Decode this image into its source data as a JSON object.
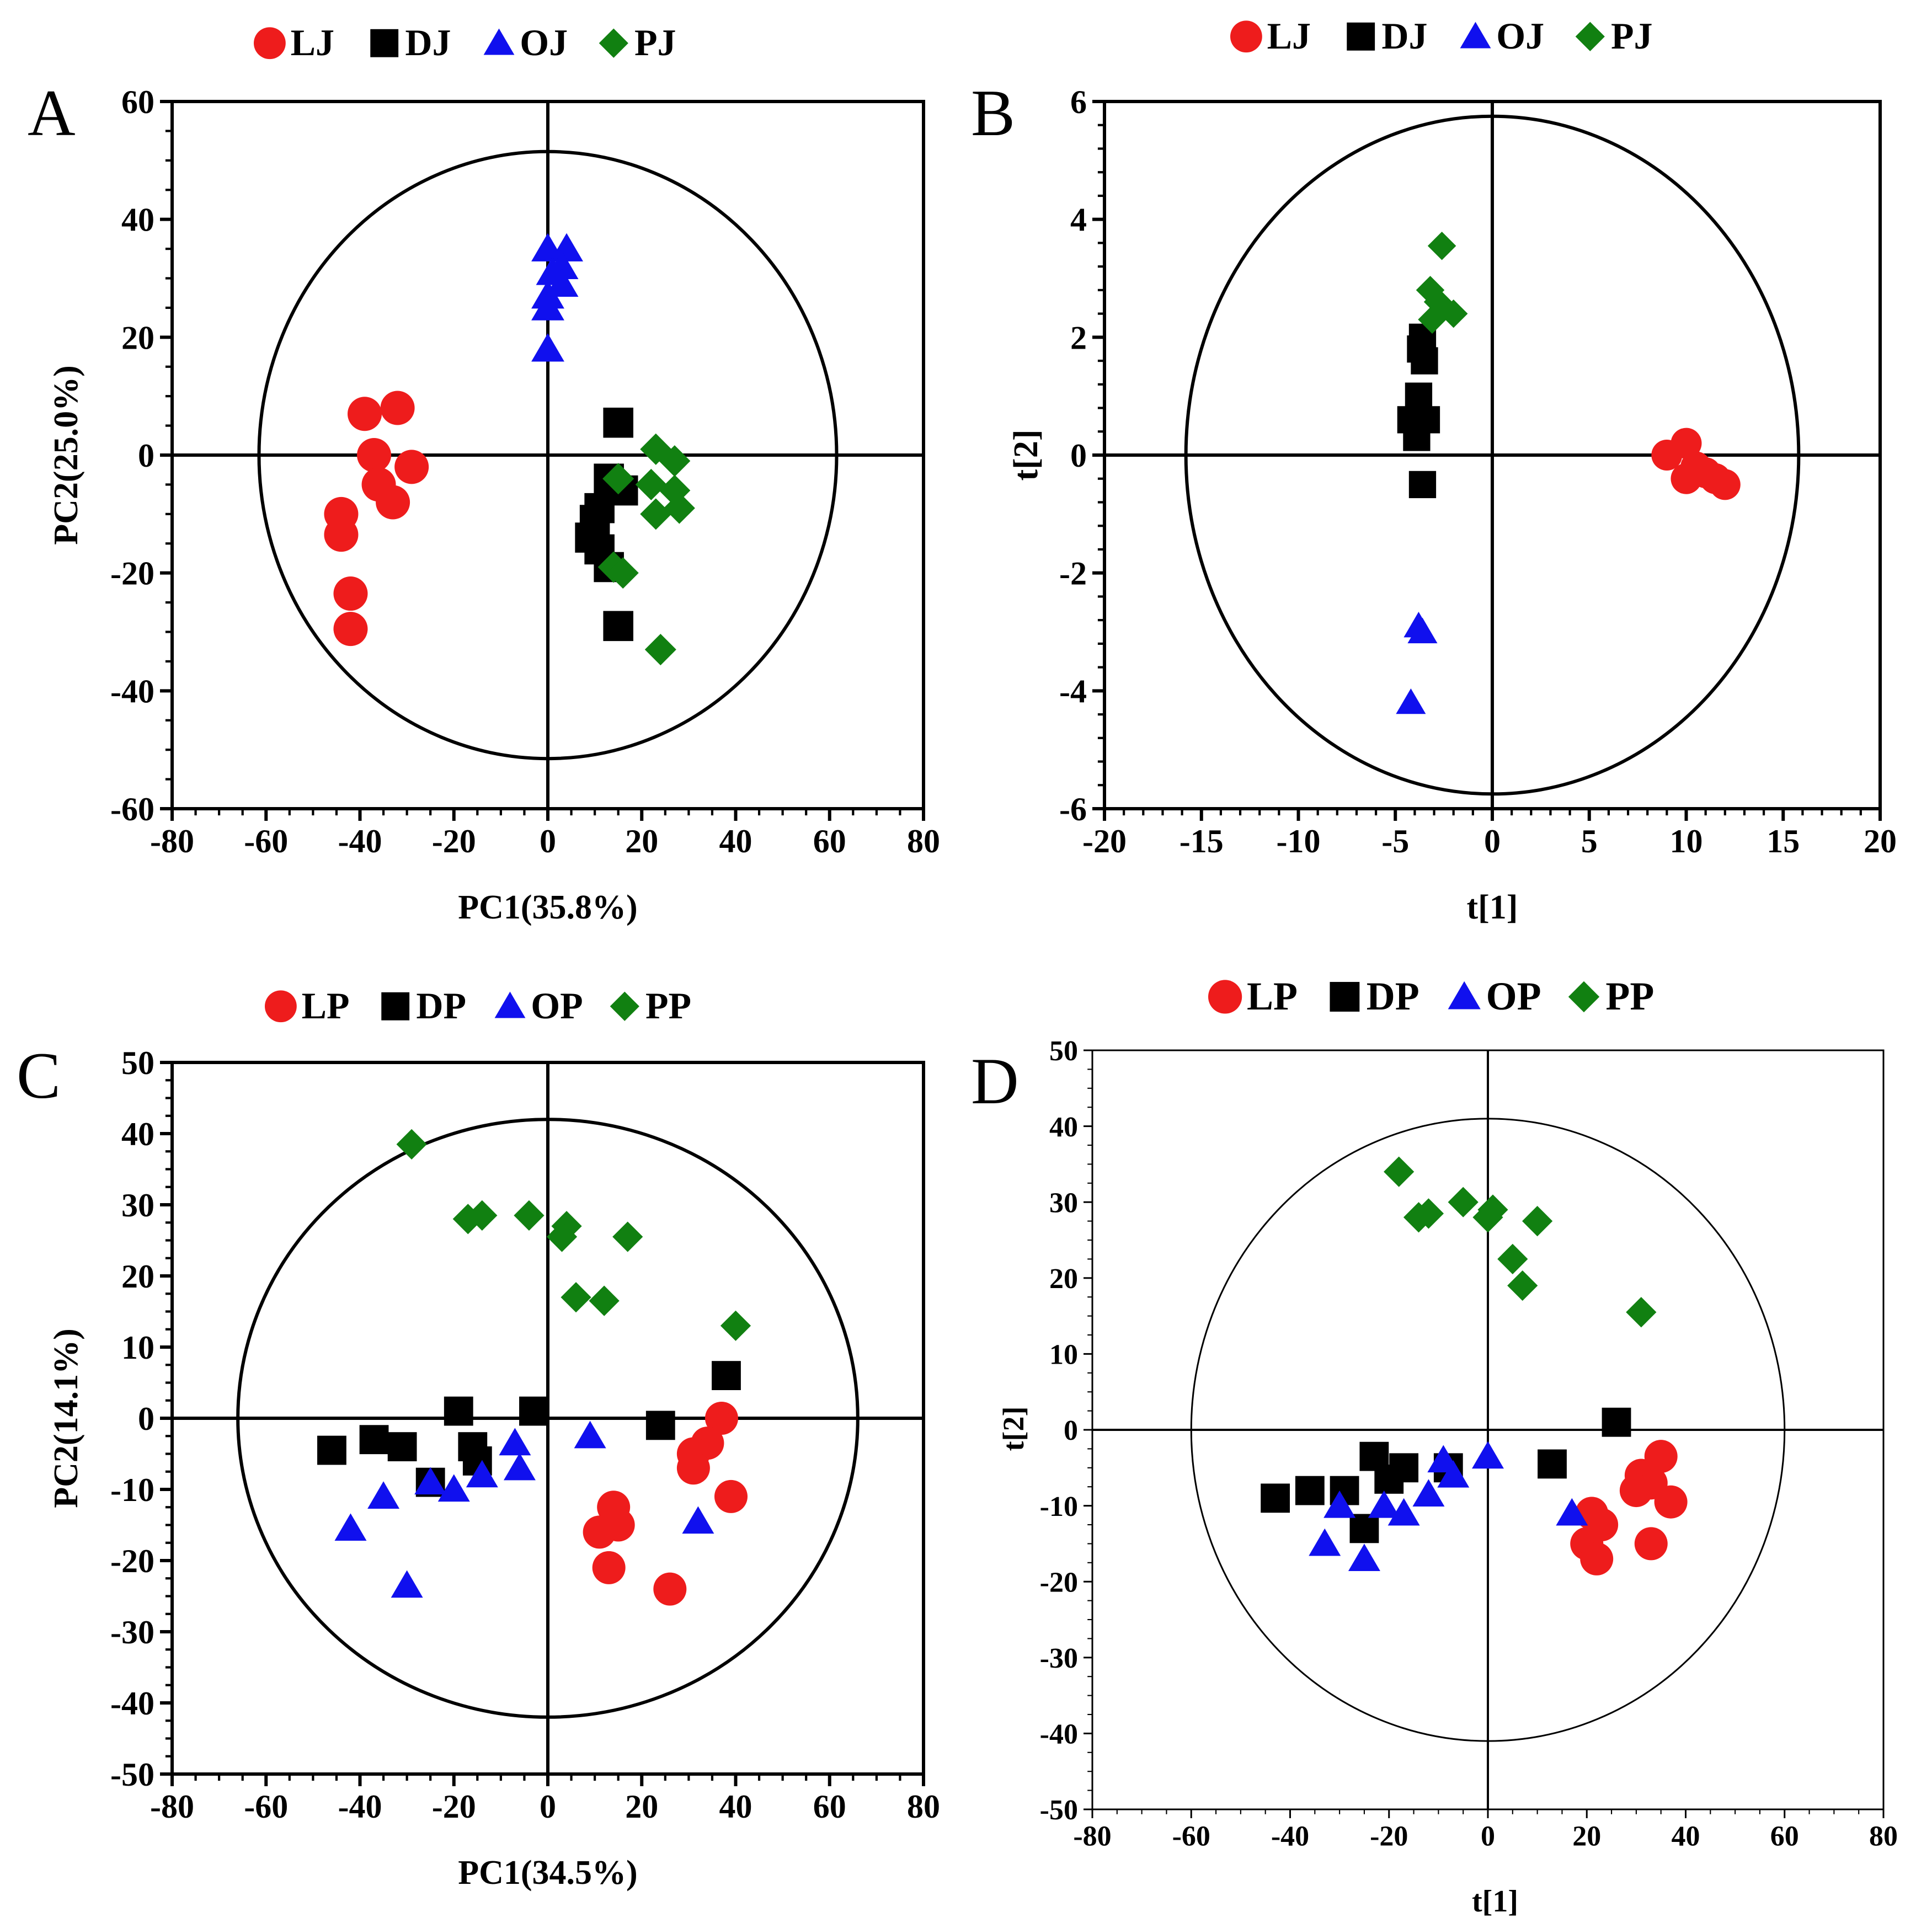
{
  "colors": {
    "L": "#ee1c1c",
    "D": "#000000",
    "O": "#1010ee",
    "P": "#118011"
  },
  "chart_data": [
    {
      "panel": "A",
      "type": "scatter",
      "xlabel": "PC1(35.8%)",
      "ylabel": "PC2(25.0%)",
      "xlim": [
        -80,
        80
      ],
      "ylim": [
        -60,
        60
      ],
      "xticks": [
        -80,
        -60,
        -40,
        -20,
        0,
        20,
        40,
        60,
        80
      ],
      "yticks": [
        -60,
        -40,
        -20,
        0,
        20,
        40,
        60
      ],
      "ellipse": [
        61.5,
        51.5
      ],
      "series": [
        {
          "name": "LJ",
          "marker": "circle",
          "color": "#ee1c1c",
          "points": [
            [
              -39,
              7
            ],
            [
              -32,
              8
            ],
            [
              -37,
              0
            ],
            [
              -29,
              -2
            ],
            [
              -36,
              -5
            ],
            [
              -33,
              -8
            ],
            [
              -44,
              -10
            ],
            [
              -44,
              -13.5
            ],
            [
              -42,
              -23.5
            ],
            [
              -42,
              -29.5
            ]
          ]
        },
        {
          "name": "DJ",
          "marker": "square",
          "color": "#000000",
          "points": [
            [
              15,
              5.5
            ],
            [
              13,
              -4
            ],
            [
              16,
              -6
            ],
            [
              11,
              -9
            ],
            [
              10,
              -11
            ],
            [
              9,
              -14
            ],
            [
              11,
              -16
            ],
            [
              13,
              -19
            ],
            [
              15,
              -29
            ]
          ]
        },
        {
          "name": "OJ",
          "marker": "triangle",
          "color": "#1010ee",
          "points": [
            [
              0,
              35
            ],
            [
              4,
              35
            ],
            [
              3,
              32
            ],
            [
              1,
              31
            ],
            [
              3,
              29
            ],
            [
              0,
              27
            ],
            [
              0,
              25
            ],
            [
              0,
              18
            ]
          ]
        },
        {
          "name": "PJ",
          "marker": "diamond",
          "color": "#118011",
          "points": [
            [
              23,
              1
            ],
            [
              27,
              -1
            ],
            [
              15,
              -4
            ],
            [
              22,
              -5
            ],
            [
              27,
              -6
            ],
            [
              28,
              -9
            ],
            [
              23,
              -10
            ],
            [
              14,
              -19
            ],
            [
              16,
              -20
            ],
            [
              24,
              -33
            ]
          ]
        }
      ]
    },
    {
      "panel": "B",
      "type": "scatter",
      "xlabel": "t[1]",
      "ylabel": "t[2]",
      "xlim": [
        -20,
        20
      ],
      "ylim": [
        -6,
        6
      ],
      "xticks": [
        -20,
        -15,
        -10,
        -5,
        0,
        5,
        10,
        15,
        20
      ],
      "yticks": [
        -6,
        -4,
        -2,
        0,
        2,
        4,
        6
      ],
      "ellipse": [
        15.8,
        5.75
      ],
      "series": [
        {
          "name": "LJ",
          "marker": "circle",
          "color": "#ee1c1c",
          "points": [
            [
              9,
              0
            ],
            [
              10,
              0.2
            ],
            [
              10.5,
              -0.2
            ],
            [
              11,
              -0.3
            ],
            [
              11.5,
              -0.4
            ],
            [
              12,
              -0.5
            ],
            [
              10,
              -0.4
            ]
          ]
        },
        {
          "name": "DJ",
          "marker": "square",
          "color": "#000000",
          "points": [
            [
              -3.6,
              2
            ],
            [
              -3.7,
              1.8
            ],
            [
              -3.5,
              1.6
            ],
            [
              -3.8,
              1
            ],
            [
              -3.4,
              0.6
            ],
            [
              -4.2,
              0.6
            ],
            [
              -3.9,
              0.3
            ],
            [
              -3.6,
              -0.5
            ]
          ]
        },
        {
          "name": "OJ",
          "marker": "triangle",
          "color": "#1010ee",
          "points": [
            [
              -3.8,
              -2.9
            ],
            [
              -3.6,
              -3
            ],
            [
              -4.2,
              -4.2
            ]
          ]
        },
        {
          "name": "PJ",
          "marker": "diamond",
          "color": "#118011",
          "points": [
            [
              -2.6,
              3.55
            ],
            [
              -3.2,
              2.8
            ],
            [
              -2.8,
              2.6
            ],
            [
              -2,
              2.4
            ],
            [
              -3.1,
              2.3
            ]
          ]
        }
      ]
    },
    {
      "panel": "C",
      "type": "scatter",
      "xlabel": "PC1(34.5%)",
      "ylabel": "PC2(14.1%)",
      "xlim": [
        -80,
        80
      ],
      "ylim": [
        -50,
        50
      ],
      "xticks": [
        -80,
        -60,
        -40,
        -20,
        0,
        20,
        40,
        60,
        80
      ],
      "yticks": [
        -50,
        -40,
        -30,
        -20,
        -10,
        0,
        10,
        20,
        30,
        40,
        50
      ],
      "ellipse": [
        66,
        42
      ],
      "series": [
        {
          "name": "LP",
          "marker": "circle",
          "color": "#ee1c1c",
          "points": [
            [
              37,
              0
            ],
            [
              34,
              -3.5
            ],
            [
              31,
              -5
            ],
            [
              31,
              -7
            ],
            [
              39,
              -11
            ],
            [
              14,
              -12.5
            ],
            [
              15,
              -15
            ],
            [
              11,
              -16
            ],
            [
              13,
              -21
            ],
            [
              26,
              -24
            ]
          ]
        },
        {
          "name": "DP",
          "marker": "square",
          "color": "#000000",
          "points": [
            [
              38,
              6
            ],
            [
              -19,
              1
            ],
            [
              -3,
              1
            ],
            [
              24,
              -1
            ],
            [
              -46,
              -4.5
            ],
            [
              -37,
              -3
            ],
            [
              -31,
              -4
            ],
            [
              -16,
              -4
            ],
            [
              -15,
              -6
            ],
            [
              -25,
              -9
            ]
          ]
        },
        {
          "name": "OP",
          "marker": "triangle",
          "color": "#1010ee",
          "points": [
            [
              -7,
              -3.5
            ],
            [
              9,
              -2.5
            ],
            [
              -6,
              -7
            ],
            [
              -14,
              -8
            ],
            [
              -35,
              -11
            ],
            [
              -25,
              -9
            ],
            [
              -20,
              -10
            ],
            [
              -42,
              -15.5
            ],
            [
              32,
              -14.5
            ],
            [
              -30,
              -23.5
            ]
          ]
        },
        {
          "name": "PP",
          "marker": "diamond",
          "color": "#118011",
          "points": [
            [
              -29,
              38.5
            ],
            [
              -17,
              28
            ],
            [
              -14,
              28.5
            ],
            [
              -4,
              28.5
            ],
            [
              4,
              27
            ],
            [
              3,
              25.5
            ],
            [
              17,
              25.5
            ],
            [
              6,
              17
            ],
            [
              12,
              16.5
            ],
            [
              40,
              13
            ]
          ]
        }
      ]
    },
    {
      "panel": "D",
      "type": "scatter",
      "xlabel": "t[1]",
      "ylabel": "t[2]",
      "xlim": [
        -80,
        80
      ],
      "ylim": [
        -50,
        50
      ],
      "xticks": [
        -80,
        -60,
        -40,
        -20,
        0,
        20,
        40,
        60,
        80
      ],
      "yticks": [
        -50,
        -40,
        -30,
        -20,
        -10,
        0,
        10,
        20,
        30,
        40,
        50
      ],
      "ellipse": [
        60,
        41
      ],
      "series": [
        {
          "name": "LP",
          "marker": "circle",
          "color": "#ee1c1c",
          "points": [
            [
              35,
              -3.5
            ],
            [
              31,
              -6
            ],
            [
              33,
              -7
            ],
            [
              30,
              -8
            ],
            [
              37,
              -9.5
            ],
            [
              21,
              -11
            ],
            [
              23,
              -12.5
            ],
            [
              20,
              -15
            ],
            [
              33,
              -15
            ],
            [
              22,
              -17
            ]
          ]
        },
        {
          "name": "DP",
          "marker": "square",
          "color": "#000000",
          "points": [
            [
              26,
              1
            ],
            [
              -23,
              -3.5
            ],
            [
              -17,
              -5
            ],
            [
              13,
              -4.5
            ],
            [
              -20,
              -6.5
            ],
            [
              -8,
              -5
            ],
            [
              -43,
              -9
            ],
            [
              -36,
              -8
            ],
            [
              -29,
              -8
            ],
            [
              -25,
              -13
            ]
          ]
        },
        {
          "name": "OP",
          "marker": "triangle",
          "color": "#1010ee",
          "points": [
            [
              0,
              -3.5
            ],
            [
              -9,
              -4
            ],
            [
              -7,
              -6
            ],
            [
              -12,
              -8.5
            ],
            [
              -21,
              -10
            ],
            [
              -17,
              -11
            ],
            [
              -30,
              -10
            ],
            [
              17,
              -11
            ],
            [
              -33,
              -15
            ],
            [
              -25,
              -17
            ]
          ]
        },
        {
          "name": "PP",
          "marker": "diamond",
          "color": "#118011",
          "points": [
            [
              -18,
              34
            ],
            [
              -5,
              30
            ],
            [
              1,
              29
            ],
            [
              0,
              28
            ],
            [
              -12,
              28.5
            ],
            [
              -14,
              28
            ],
            [
              10,
              27.5
            ],
            [
              5,
              22.5
            ],
            [
              7,
              19
            ],
            [
              31,
              15.5
            ]
          ]
        }
      ]
    }
  ]
}
